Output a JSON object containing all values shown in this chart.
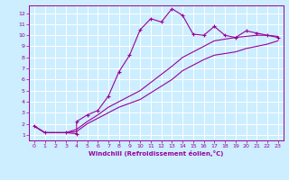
{
  "xlabel": "Windchill (Refroidissement éolien,°C)",
  "bg_color": "#cceeff",
  "line_color": "#990099",
  "grid_color": "#ffffff",
  "xlim": [
    -0.5,
    23.5
  ],
  "ylim": [
    0.5,
    12.7
  ],
  "xticks": [
    0,
    1,
    2,
    3,
    4,
    5,
    6,
    7,
    8,
    9,
    10,
    11,
    12,
    13,
    14,
    15,
    16,
    17,
    18,
    19,
    20,
    21,
    22,
    23
  ],
  "yticks": [
    1,
    2,
    3,
    4,
    5,
    6,
    7,
    8,
    9,
    10,
    11,
    12
  ],
  "line1_x": [
    0,
    1,
    3,
    4,
    4,
    5,
    6,
    7,
    8,
    9,
    10,
    11,
    12,
    13,
    14,
    15,
    16,
    17,
    18,
    19,
    20,
    21,
    22,
    23
  ],
  "line1_y": [
    1.8,
    1.2,
    1.2,
    1.1,
    2.2,
    2.8,
    3.2,
    4.5,
    6.7,
    8.2,
    10.5,
    11.5,
    11.2,
    12.4,
    11.8,
    10.1,
    10.0,
    10.8,
    10.0,
    9.8,
    10.4,
    10.2,
    10.0,
    9.8
  ],
  "line2_x": [
    0,
    1,
    3,
    4,
    5,
    6,
    7,
    8,
    10,
    13,
    14,
    16,
    17,
    19,
    20,
    21,
    22,
    23
  ],
  "line2_y": [
    1.8,
    1.2,
    1.2,
    1.5,
    2.2,
    2.8,
    3.5,
    4.0,
    5.0,
    7.2,
    8.0,
    9.0,
    9.5,
    9.8,
    9.9,
    10.0,
    10.0,
    9.9
  ],
  "line3_x": [
    0,
    1,
    3,
    4,
    5,
    6,
    7,
    8,
    10,
    13,
    14,
    16,
    17,
    19,
    20,
    21,
    22,
    23
  ],
  "line3_y": [
    1.8,
    1.2,
    1.2,
    1.3,
    2.0,
    2.5,
    3.0,
    3.5,
    4.2,
    6.0,
    6.8,
    7.8,
    8.2,
    8.5,
    8.8,
    9.0,
    9.2,
    9.5
  ]
}
